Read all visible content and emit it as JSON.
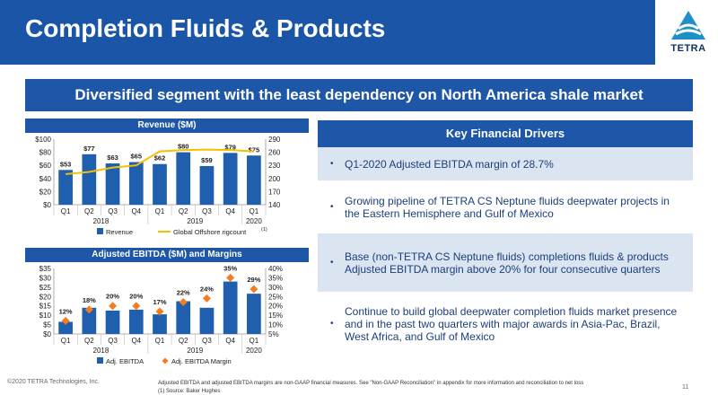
{
  "header": {
    "title": "Completion Fluids & Products"
  },
  "logo": {
    "text": "TETRA"
  },
  "banner": {
    "text": "Diversified segment with the least dependency on North America shale market"
  },
  "revenue_panel": {
    "title": "Revenue ($M)"
  },
  "ebitda_panel": {
    "title": "Adjusted EBITDA ($M) and Margins"
  },
  "drivers": {
    "title": "Key Financial Drivers",
    "items": [
      "Q1-2020 Adjusted EBITDA margin of 28.7%",
      "Growing pipeline of TETRA CS Neptune fluids deepwater projects in the Eastern Hemisphere and Gulf of Mexico",
      "Base (non-TETRA CS Neptune fluids) completions fluids & products Adjusted EBITDA margin above 20% for four consecutive quarters",
      "Continue to build global deepwater completion fluids market presence and in the past two quarters with major awards in Asia-Pac, Brazil, West Africa, and Gulf of Mexico"
    ]
  },
  "footer": {
    "copyright": "©2020 TETRA Technologies, Inc.",
    "note1": "Adjusted EBITDA and adjusted EBITDA margins are non-GAAP financial measures. See \"Non-GAAP Reconciliation\" in appendix for more information and reconciliation to net loss",
    "note2": "(1)    Source: Baker Hughes",
    "page": "11"
  },
  "colors": {
    "primary": "#1e57a7",
    "bar": "#1f5fae",
    "line": "#f2c200",
    "marker": "#f47c20",
    "shade": "#dbe5f1"
  },
  "chart_data": [
    {
      "type": "bar",
      "title": "Revenue ($M)",
      "categories": [
        "Q1",
        "Q2",
        "Q3",
        "Q4",
        "Q1",
        "Q2",
        "Q3",
        "Q4",
        "Q1"
      ],
      "groups": [
        {
          "label": "2018",
          "span": [
            0,
            3
          ]
        },
        {
          "label": "2019",
          "span": [
            4,
            7
          ]
        },
        {
          "label": "2020",
          "span": [
            8,
            8
          ]
        }
      ],
      "series": [
        {
          "name": "Revenue",
          "type": "bar",
          "axis": "left",
          "values": [
            53,
            77,
            63,
            65,
            62,
            80,
            59,
            79,
            75
          ],
          "labels": [
            "$53",
            "$77",
            "$63",
            "$65",
            "$62",
            "$80",
            "$59",
            "$79",
            "$75"
          ]
        },
        {
          "name": "Global Offshore rigcount",
          "superscript": "(1)",
          "type": "line",
          "axis": "right",
          "values": [
            210,
            215,
            225,
            230,
            262,
            265,
            266,
            265,
            262
          ]
        }
      ],
      "ylim": [
        0,
        100
      ],
      "yticks": [
        "$0",
        "$20",
        "$40",
        "$60",
        "$80",
        "$100"
      ],
      "y2lim": [
        140,
        290
      ],
      "y2ticks": [
        "140",
        "170",
        "200",
        "230",
        "260",
        "290"
      ],
      "legend": "bottom",
      "grid": false
    },
    {
      "type": "bar",
      "title": "Adjusted EBITDA ($M) and Margins",
      "categories": [
        "Q1",
        "Q2",
        "Q3",
        "Q4",
        "Q1",
        "Q2",
        "Q3",
        "Q4",
        "Q1"
      ],
      "groups": [
        {
          "label": "2018",
          "span": [
            0,
            3
          ]
        },
        {
          "label": "2019",
          "span": [
            4,
            7
          ]
        },
        {
          "label": "2020",
          "span": [
            8,
            8
          ]
        }
      ],
      "series": [
        {
          "name": "Adj. EBITDA",
          "type": "bar",
          "axis": "left",
          "values": [
            6.5,
            14,
            12.5,
            13,
            10.5,
            17.5,
            14,
            28,
            21.5
          ]
        },
        {
          "name": "Adj. EBITDA Margin",
          "type": "scatter",
          "axis": "right",
          "values": [
            12,
            18,
            20,
            20,
            17,
            22,
            24,
            35,
            29
          ],
          "labels": [
            "12%",
            "18%",
            "20%",
            "20%",
            "17%",
            "22%",
            "24%",
            "35%",
            "29%"
          ]
        }
      ],
      "ylim": [
        0,
        35
      ],
      "yticks": [
        "$0",
        "$5",
        "$10",
        "$15",
        "$20",
        "$25",
        "$30",
        "$35"
      ],
      "y2lim": [
        5,
        40
      ],
      "y2ticks": [
        "5%",
        "10%",
        "15%",
        "20%",
        "25%",
        "30%",
        "35%",
        "40%"
      ],
      "legend": "bottom",
      "grid": false
    }
  ]
}
